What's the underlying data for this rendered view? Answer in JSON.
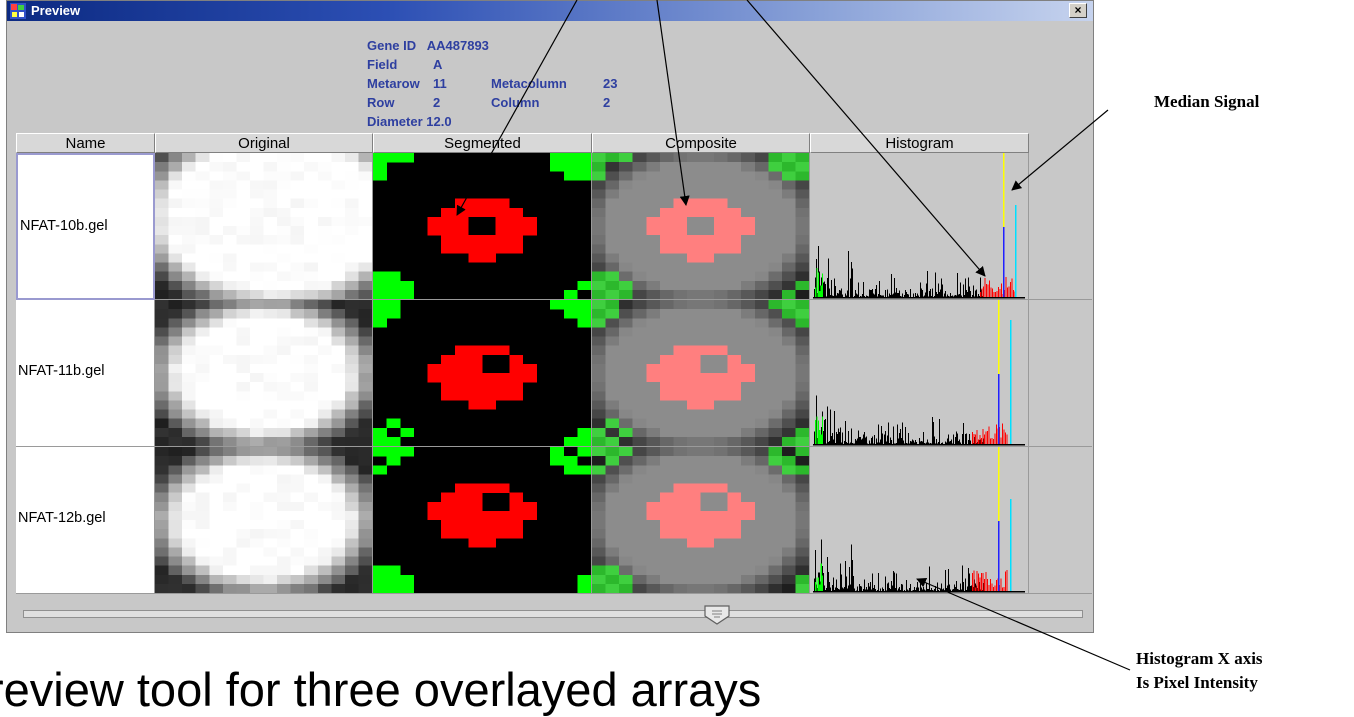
{
  "window": {
    "title": "Preview",
    "close_label": "×"
  },
  "info": {
    "gene_id_label": "Gene ID",
    "gene_id": "AA487893",
    "field_label": "Field",
    "field": "A",
    "metarow_label": "Metarow",
    "metarow": "11",
    "metacolumn_label": "Metacolumn",
    "metacolumn": "23",
    "row_label": "Row",
    "row": "2",
    "column_label": "Column",
    "column": "2",
    "diameter_label": "Diameter",
    "diameter": "12.0"
  },
  "columns": [
    "Name",
    "Original",
    "Segmented",
    "Composite",
    "Histogram"
  ],
  "rows": [
    {
      "name": "NFAT-10b.gel"
    },
    {
      "name": "NFAT-11b.gel"
    },
    {
      "name": "NFAT-12b.gel"
    }
  ],
  "annotations": {
    "median_signal": "Median Signal",
    "histogram_axis_line1": "Histogram X axis",
    "histogram_axis_line2": "Is Pixel Intensity"
  },
  "caption": "review tool for three overlayed arrays",
  "colors": {
    "signal": "#ff0000",
    "signal_composite": "#ff7f7f",
    "background": "#00ff00",
    "median_signal_line": "#ffff00",
    "mean_line": "#2020ff",
    "bg_line": "#00e0ff"
  }
}
